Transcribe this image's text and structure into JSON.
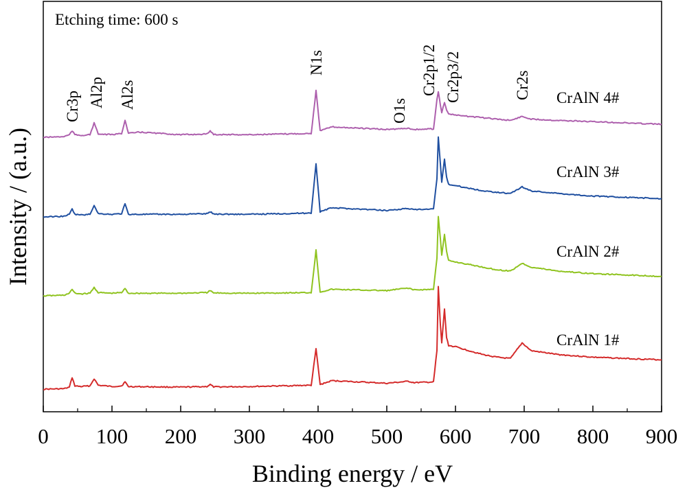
{
  "chart_data": {
    "type": "line",
    "title": "",
    "annotation": "Etching time: 600 s",
    "xlabel": "Binding energy / eV",
    "ylabel": "Intensity / (a.u.)",
    "xlim": [
      0,
      900
    ],
    "x_ticks": [
      0,
      100,
      200,
      300,
      400,
      500,
      600,
      700,
      800,
      900
    ],
    "x_tick_labels": [
      "0",
      "100",
      "200",
      "300",
      "400",
      "500",
      "600",
      "700",
      "800",
      "900"
    ],
    "y_ticks_shown": false,
    "grid": false,
    "legend": "none (series labeled inline at right)",
    "peak_labels": [
      {
        "text": "Cr3p",
        "x": 42
      },
      {
        "text": "Al2p",
        "x": 74
      },
      {
        "text": "Al2s",
        "x": 119
      },
      {
        "text": "N1s",
        "x": 397
      },
      {
        "text": "O1s",
        "x": 531
      },
      {
        "text": "Cr2p1/2",
        "x": 575
      },
      {
        "text": "Cr2p3/2",
        "x": 584
      },
      {
        "text": "Cr2s",
        "x": 697
      }
    ],
    "series": [
      {
        "name": "CrAlN 1#",
        "color": "#d42a2a",
        "x": [
          0,
          30,
          38,
          42,
          46,
          55,
          68,
          74,
          80,
          100,
          114,
          119,
          124,
          200,
          238,
          243,
          248,
          300,
          390,
          397,
          403,
          420,
          500,
          531,
          540,
          568,
          573,
          575,
          578,
          580,
          584,
          587,
          590,
          600,
          640,
          660,
          680,
          697,
          710,
          750,
          800,
          850,
          900
        ],
        "y": [
          0.005,
          0.008,
          0.02,
          0.095,
          0.03,
          0.025,
          0.03,
          0.085,
          0.035,
          0.025,
          0.03,
          0.06,
          0.025,
          0.02,
          0.025,
          0.04,
          0.022,
          0.025,
          0.035,
          0.315,
          0.04,
          0.07,
          0.05,
          0.065,
          0.055,
          0.06,
          0.3,
          0.79,
          0.5,
          0.36,
          0.62,
          0.4,
          0.34,
          0.33,
          0.27,
          0.25,
          0.24,
          0.36,
          0.3,
          0.27,
          0.25,
          0.24,
          0.23
        ]
      },
      {
        "name": "CrAlN 2#",
        "color": "#8fc31f",
        "x": [
          0,
          30,
          38,
          42,
          46,
          55,
          68,
          74,
          80,
          100,
          114,
          119,
          124,
          200,
          238,
          243,
          248,
          300,
          390,
          397,
          403,
          420,
          500,
          531,
          540,
          568,
          573,
          575,
          578,
          580,
          584,
          587,
          590,
          600,
          640,
          660,
          680,
          697,
          710,
          750,
          800,
          850,
          900
        ],
        "y": [
          0.01,
          0.015,
          0.03,
          0.06,
          0.03,
          0.025,
          0.03,
          0.075,
          0.035,
          0.03,
          0.035,
          0.065,
          0.03,
          0.03,
          0.035,
          0.05,
          0.032,
          0.03,
          0.035,
          0.36,
          0.04,
          0.06,
          0.05,
          0.07,
          0.055,
          0.06,
          0.3,
          0.62,
          0.45,
          0.32,
          0.48,
          0.35,
          0.28,
          0.27,
          0.23,
          0.21,
          0.2,
          0.26,
          0.23,
          0.2,
          0.18,
          0.17,
          0.16
        ]
      },
      {
        "name": "CrAlN 3#",
        "color": "#1f4fa0",
        "x": [
          0,
          30,
          38,
          42,
          46,
          55,
          68,
          74,
          80,
          100,
          114,
          119,
          124,
          200,
          238,
          243,
          248,
          300,
          390,
          397,
          403,
          420,
          500,
          531,
          540,
          568,
          573,
          575,
          578,
          580,
          584,
          587,
          590,
          600,
          640,
          660,
          680,
          697,
          710,
          750,
          800,
          850,
          900
        ],
        "y": [
          0.01,
          0.015,
          0.03,
          0.07,
          0.03,
          0.025,
          0.03,
          0.1,
          0.035,
          0.03,
          0.035,
          0.11,
          0.03,
          0.03,
          0.035,
          0.05,
          0.032,
          0.03,
          0.04,
          0.42,
          0.05,
          0.08,
          0.06,
          0.075,
          0.065,
          0.07,
          0.3,
          0.62,
          0.42,
          0.28,
          0.45,
          0.32,
          0.26,
          0.25,
          0.21,
          0.2,
          0.19,
          0.24,
          0.21,
          0.19,
          0.17,
          0.16,
          0.15
        ]
      },
      {
        "name": "CrAlN 4#",
        "color": "#ad5fad",
        "x": [
          0,
          30,
          38,
          42,
          46,
          55,
          68,
          74,
          80,
          100,
          114,
          119,
          124,
          140,
          200,
          238,
          243,
          248,
          300,
          390,
          397,
          403,
          420,
          500,
          531,
          540,
          568,
          573,
          575,
          578,
          580,
          584,
          587,
          590,
          600,
          640,
          660,
          680,
          697,
          710,
          750,
          800,
          850,
          900
        ],
        "y": [
          0.01,
          0.015,
          0.03,
          0.06,
          0.03,
          0.025,
          0.03,
          0.12,
          0.035,
          0.03,
          0.04,
          0.14,
          0.04,
          0.05,
          0.03,
          0.035,
          0.06,
          0.032,
          0.03,
          0.04,
          0.37,
          0.06,
          0.09,
          0.07,
          0.08,
          0.07,
          0.075,
          0.3,
          0.36,
          0.26,
          0.2,
          0.28,
          0.22,
          0.19,
          0.18,
          0.16,
          0.15,
          0.14,
          0.17,
          0.15,
          0.14,
          0.13,
          0.12,
          0.11
        ]
      }
    ]
  }
}
